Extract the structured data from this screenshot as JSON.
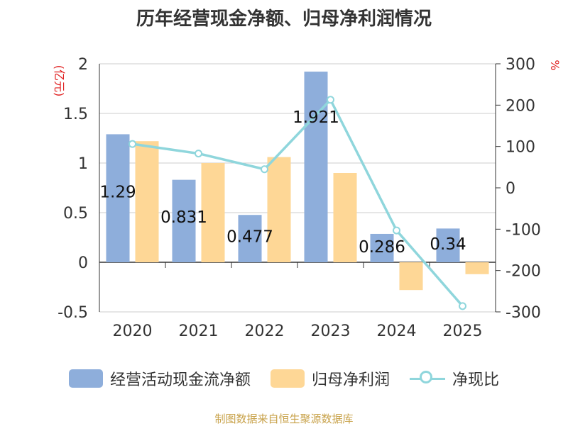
{
  "chart_data": {
    "type": "bar",
    "title": "历年经营现金净额、归母净利润情况",
    "categories": [
      "2020",
      "2021",
      "2022",
      "2023",
      "2024",
      "2025"
    ],
    "series": [
      {
        "name": "经营活动现金流净额",
        "axis": "left",
        "kind": "bar",
        "values": [
          1.29,
          0.831,
          0.477,
          1.921,
          0.286,
          0.34
        ],
        "data_labels": [
          "1.29",
          "0.831",
          "0.477",
          "1.921",
          "0.286",
          "0.34"
        ]
      },
      {
        "name": "归母净利润",
        "axis": "left",
        "kind": "bar",
        "values": [
          1.22,
          1.0,
          1.06,
          0.9,
          -0.28,
          -0.12
        ]
      },
      {
        "name": "净现比",
        "axis": "right",
        "kind": "line",
        "values": [
          106,
          83,
          45,
          213,
          -103,
          -286
        ]
      }
    ],
    "left_axis": {
      "label": "(亿元)",
      "ylim": [
        -0.5,
        2
      ],
      "ticks": [
        -0.5,
        0,
        0.5,
        1,
        1.5,
        2
      ],
      "tick_labels": [
        "-0.5",
        "0",
        "0.5",
        "1",
        "1.5",
        "2"
      ]
    },
    "right_axis": {
      "label": "%",
      "ylim": [
        -300,
        300
      ],
      "ticks": [
        -300,
        -200,
        -100,
        0,
        100,
        200,
        300
      ],
      "tick_labels": [
        "-300",
        "-200",
        "-100",
        "0",
        "100",
        "200",
        "300"
      ]
    },
    "grid": true,
    "legend_position": "bottom",
    "colors": {
      "cash_flow": "#8eaedb",
      "net_profit": "#fed796",
      "ratio": "#8fd6dc",
      "axis_label": "#e02020",
      "source": "#c8a24a"
    }
  },
  "legend": {
    "items": [
      "经营活动现金流净额",
      "归母净利润",
      "净现比"
    ]
  },
  "source": "制图数据来自恒生聚源数据库"
}
